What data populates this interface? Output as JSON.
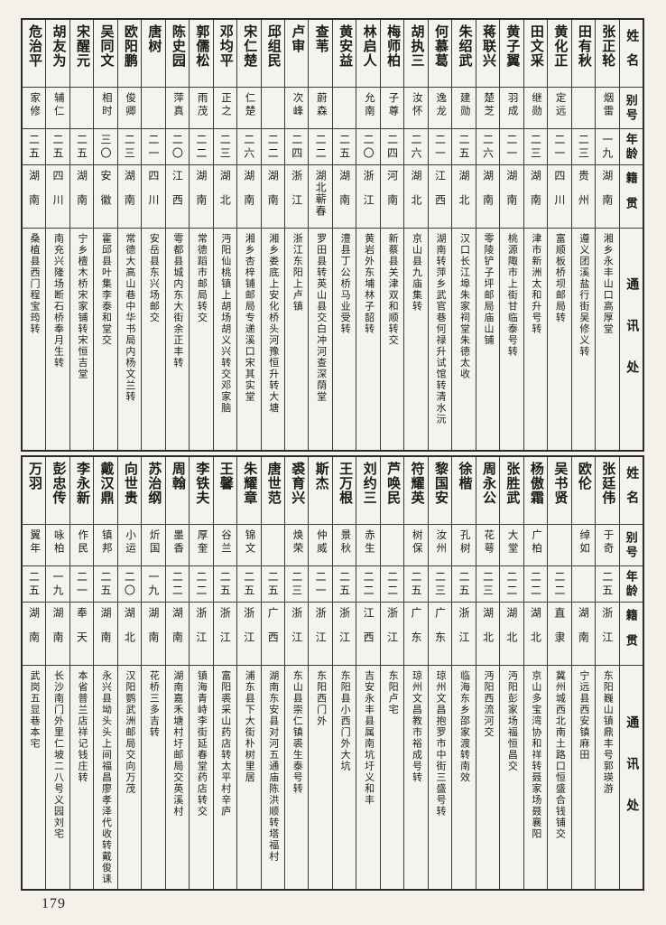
{
  "page_number": "179",
  "headers": {
    "name": "姓名",
    "hao": "别号",
    "age": "年龄",
    "native": "籍贯",
    "address": "通讯处"
  },
  "tables": [
    {
      "entries": [
        {
          "name": "张正轮",
          "hao": "烟雷",
          "age": "一九",
          "native": "湖南",
          "address": "湘乡永丰山口高厚堂"
        },
        {
          "name": "田有秋",
          "hao": "",
          "age": "二三",
          "native": "贵州",
          "address": "遵义团溪盐行街吴修义转"
        },
        {
          "name": "黄化正",
          "hao": "定远",
          "age": "二一",
          "native": "四川",
          "address": "富顺板桥坝邮局转"
        },
        {
          "name": "田文采",
          "hao": "继勋",
          "age": "二三",
          "native": "湖南",
          "address": "津市新洲太和升号转"
        },
        {
          "name": "黄子翼",
          "hao": "羽成",
          "age": "二一",
          "native": "湖南",
          "address": "桃源陬市上街甘临泰号转"
        },
        {
          "name": "蒋联兴",
          "hao": "楚芝",
          "age": "二六",
          "native": "湖南",
          "address": "零陵铲子坪邮局庙山铺"
        },
        {
          "name": "朱绍武",
          "hao": "建勋",
          "age": "二五",
          "native": "湖北",
          "address": "汉口长江埠朱家祠堂朱德太收"
        },
        {
          "name": "何慕葛",
          "hao": "逸龙",
          "age": "二一",
          "native": "江西",
          "address": "湖南转萍乡武官巷何禄升试馆转清水沅"
        },
        {
          "name": "胡执三",
          "hao": "汝怀",
          "age": "二六",
          "native": "湖北",
          "address": "京山县九庙集转"
        },
        {
          "name": "梅师柏",
          "hao": "子尊",
          "age": "二四",
          "native": "河南",
          "address": "新蔡县关津双和顺转交"
        },
        {
          "name": "林启人",
          "hao": "允南",
          "age": "二〇",
          "native": "浙江",
          "address": "黄岩外东埔林子韶转"
        },
        {
          "name": "黄安益",
          "hao": "",
          "age": "二五",
          "native": "湖南",
          "address": "澧县丁公桥马业受转"
        },
        {
          "name": "查苇",
          "hao": "蔚森",
          "age": "二二",
          "native": "湖北蕲春",
          "address": "罗田县转英山县交白冲河查深荫堂"
        },
        {
          "name": "卢审",
          "hao": "次峰",
          "age": "二四",
          "native": "浙江",
          "address": "浙江东阳上卢镇"
        },
        {
          "name": "邱组民",
          "hao": "",
          "age": "二二",
          "native": "湖南",
          "address": "湘乡娄底上安化桥头河豫恒升转大塘"
        },
        {
          "name": "宋仁楚",
          "hao": "仁楚",
          "age": "二六",
          "native": "湖南",
          "address": "湘乡杏梓铺邮局专递溪口宋其实堂"
        },
        {
          "name": "邓均平",
          "hao": "正之",
          "age": "二三",
          "native": "湖北",
          "address": "沔阳仙桃镇上胡场胡义兴转交邓家脑"
        },
        {
          "name": "郭儒松",
          "hao": "雨茂",
          "age": "二二",
          "native": "湖南",
          "address": "常德蹈市邮局转交"
        },
        {
          "name": "陈史园",
          "hao": "萍真",
          "age": "二〇",
          "native": "江西",
          "address": "雩都县城内东大街余正丰转"
        },
        {
          "name": "唐树",
          "hao": "",
          "age": "二一",
          "native": "四川",
          "address": "安岳县东兴场邮交"
        },
        {
          "name": "欧阳鹏",
          "hao": "俊卿",
          "age": "二三",
          "native": "湖南",
          "address": "常德大高山巷中华书局内杨文兰转"
        },
        {
          "name": "吴同文",
          "hao": "相时",
          "age": "三〇",
          "native": "安徽",
          "address": "霍邱县叶集李泰和堂交"
        },
        {
          "name": "宋醒元",
          "hao": "",
          "age": "二五",
          "native": "湖南",
          "address": "宁乡檀木桥宋家铺转宋恒吉堂"
        },
        {
          "name": "胡友为",
          "hao": "辅仁",
          "age": "二五",
          "native": "四川",
          "address": "南充兴隆场断石桥奉月生转"
        },
        {
          "name": "危治平",
          "hao": "家修",
          "age": "二五",
          "native": "湖南",
          "address": "桑植县西门程宝筠转"
        }
      ]
    },
    {
      "entries": [
        {
          "name": "张廷伟",
          "hao": "于奇",
          "age": "二五",
          "native": "浙江",
          "address": "东阳巍山镇鼎丰号郭瑛游"
        },
        {
          "name": "欧伦",
          "hao": "绰如",
          "age": "",
          "native": "湖南",
          "address": "宁远县西安镇麻田"
        },
        {
          "name": "吴书贤",
          "hao": "",
          "age": "二二",
          "native": "直隶",
          "address": "冀州城西北南土路口恒盛合钱铺交"
        },
        {
          "name": "杨傲霜",
          "hao": "广柏",
          "age": "二二",
          "native": "湖北",
          "address": "京山多宝湾协和祥转聂家场聂襄阳"
        },
        {
          "name": "张胜武",
          "hao": "大堂",
          "age": "二二",
          "native": "湖北",
          "address": "沔阳彭家场福恒昌交"
        },
        {
          "name": "周永公",
          "hao": "花萼",
          "age": "二三",
          "native": "湖北",
          "address": "沔阳西流河交"
        },
        {
          "name": "徐楷",
          "hao": "孔树",
          "age": "二五",
          "native": "浙江",
          "address": "临海东乡邵家渡转南效"
        },
        {
          "name": "黎国安",
          "hao": "汝州",
          "age": "二三",
          "native": "广东",
          "address": "琼州文昌抱罗市中街三盛号转"
        },
        {
          "name": "符耀英",
          "hao": "树保",
          "age": "二五",
          "native": "广东",
          "address": "琼州文昌教市裕成号转"
        },
        {
          "name": "芦唤民",
          "hao": "",
          "age": "二二",
          "native": "浙江",
          "address": "东阳卢宅"
        },
        {
          "name": "刘约三",
          "hao": "赤生",
          "age": "二二",
          "native": "江西",
          "address": "吉安永丰县属南坑圩义和丰"
        },
        {
          "name": "王万根",
          "hao": "景秋",
          "age": "二五",
          "native": "浙江",
          "address": "东阳县小西门外大坑"
        },
        {
          "name": "斯杰",
          "hao": "仲威",
          "age": "二一",
          "native": "浙江",
          "address": "东阳西门外"
        },
        {
          "name": "裘育兴",
          "hao": "焕荣",
          "age": "二三",
          "native": "浙江",
          "address": "东山县崇仁镇裘生泰号转"
        },
        {
          "name": "唐世范",
          "hao": "",
          "age": "二五",
          "native": "广西",
          "address": "湖南东安县对河五通庙陈洪顺转塔福村"
        },
        {
          "name": "朱耀章",
          "hao": "锦文",
          "age": "二五",
          "native": "浙江",
          "address": "浦东县下大街朴树里居"
        },
        {
          "name": "王馨",
          "hao": "谷兰",
          "age": "二五",
          "native": "浙江",
          "address": "富阳裘采山药店转太平村辛庐"
        },
        {
          "name": "李铁夫",
          "hao": "厚奎",
          "age": "二二",
          "native": "浙江",
          "address": "镇海青峙李街延春堂药店转交"
        },
        {
          "name": "周翰",
          "hao": "墨香",
          "age": "二二",
          "native": "湖南",
          "address": "湖南嘉禾塘村圩邮局交英溪村"
        },
        {
          "name": "苏治纲",
          "hao": "炘国",
          "age": "一九",
          "native": "湖南",
          "address": "花桥三多吉转"
        },
        {
          "name": "向世贵",
          "hao": "小运",
          "age": "二〇",
          "native": "湖北",
          "address": "汉阳鹦武洲邮局交向万茂"
        },
        {
          "name": "戴汉鼎",
          "hao": "镇邦",
          "age": "二五",
          "native": "湖南",
          "address": "永兴县坳头头上间福昌廖孝泽代收转戴俊诔"
        },
        {
          "name": "李永新",
          "hao": "作民",
          "age": "二一",
          "native": "奉天",
          "address": "本省普兰店祥记钱庄转"
        },
        {
          "name": "彭忠传",
          "hao": "咏柏",
          "age": "一九",
          "native": "湖南",
          "address": "长沙南门外里仁坡二八号义园刘宅"
        },
        {
          "name": "万羽",
          "hao": "翼年",
          "age": "二五",
          "native": "湖南",
          "address": "武岗五显巷本宅"
        }
      ]
    }
  ]
}
